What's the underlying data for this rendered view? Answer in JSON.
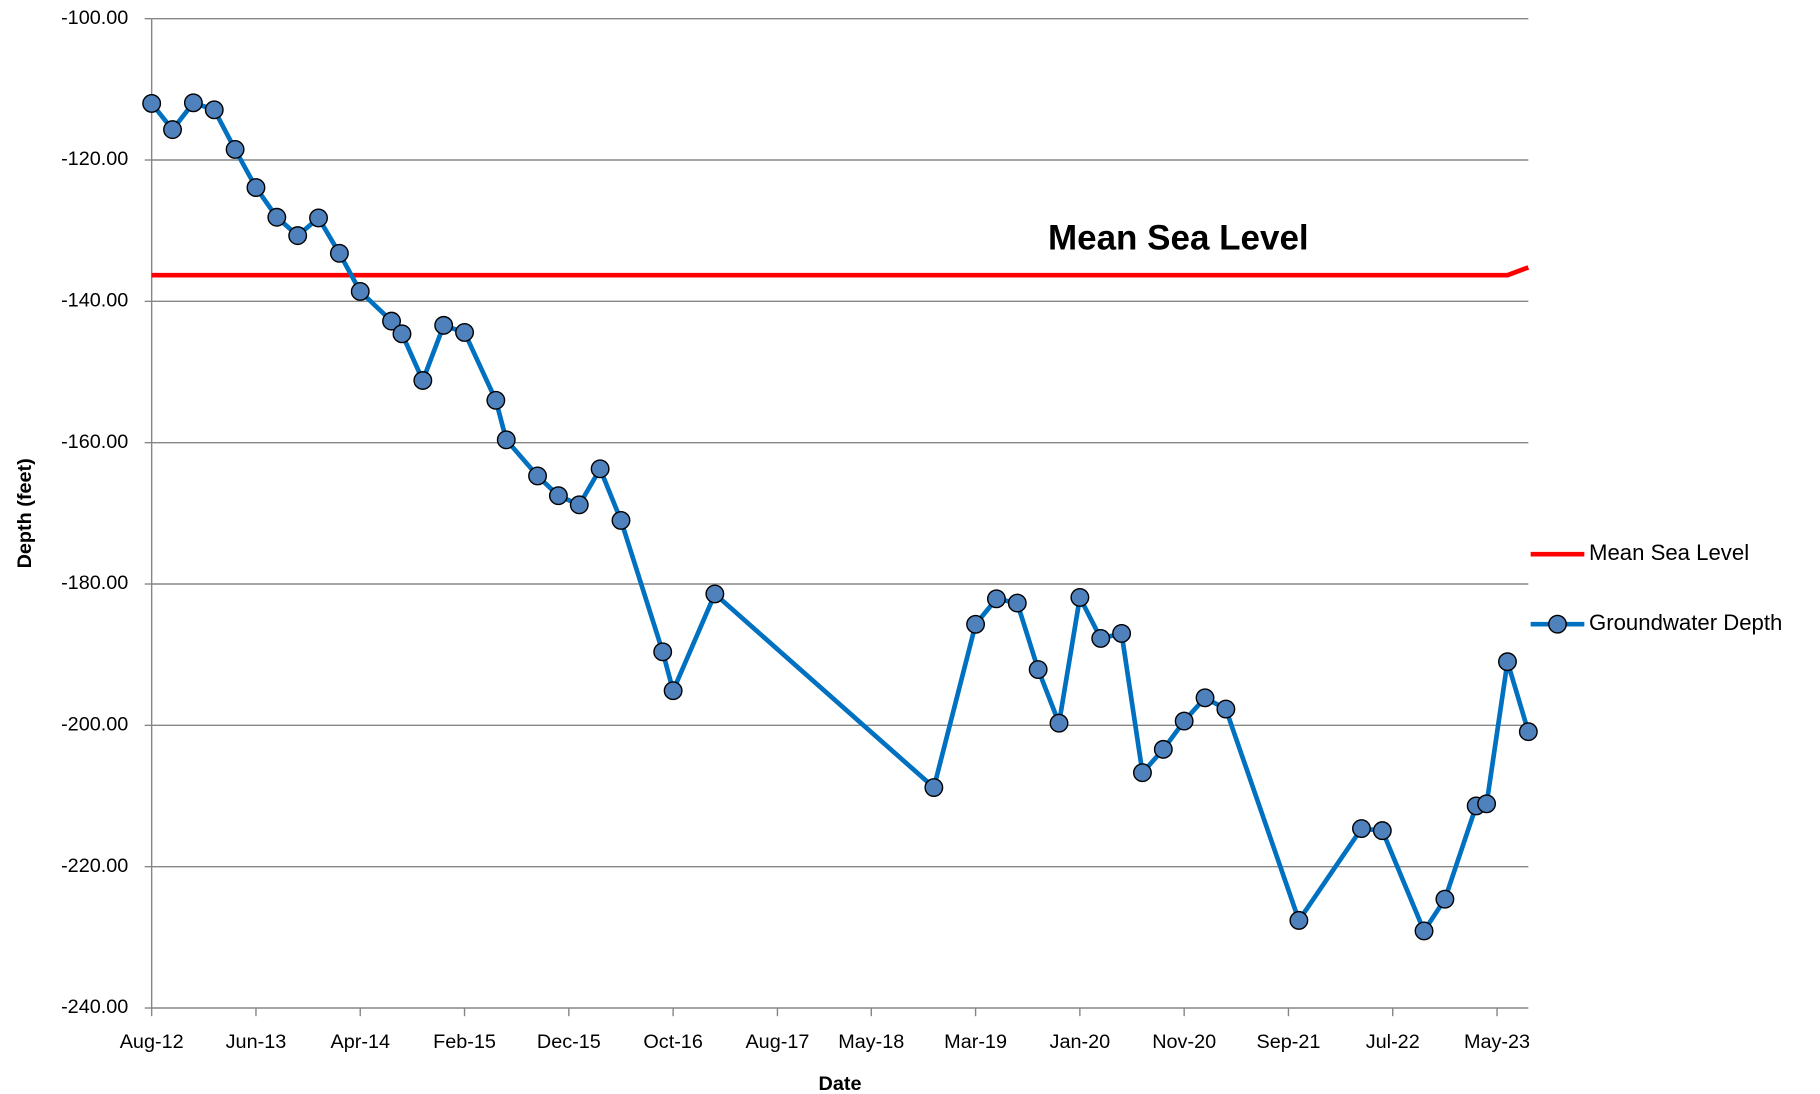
{
  "chart_data": {
    "type": "line",
    "xlabel": "Date",
    "ylabel": "Depth (feet)",
    "annotation": "Mean Sea Level",
    "xlim": [
      "2012-08",
      "2023-08"
    ],
    "xticks": [
      {
        "value": "2012-08",
        "label": "Aug-12"
      },
      {
        "value": "2013-06",
        "label": "Jun-13"
      },
      {
        "value": "2014-04",
        "label": "Apr-14"
      },
      {
        "value": "2015-02",
        "label": "Feb-15"
      },
      {
        "value": "2015-12",
        "label": "Dec-15"
      },
      {
        "value": "2016-10",
        "label": "Oct-16"
      },
      {
        "value": "2017-08",
        "label": "Aug-17"
      },
      {
        "value": "2018-05",
        "label": "May-18"
      },
      {
        "value": "2019-03",
        "label": "Mar-19"
      },
      {
        "value": "2020-01",
        "label": "Jan-20"
      },
      {
        "value": "2020-11",
        "label": "Nov-20"
      },
      {
        "value": "2021-09",
        "label": "Sep-21"
      },
      {
        "value": "2022-07",
        "label": "Jul-22"
      },
      {
        "value": "2023-05",
        "label": "May-23"
      }
    ],
    "ylim": [
      -240,
      -100
    ],
    "yticks": [
      {
        "value": -100,
        "label": "-100.00"
      },
      {
        "value": -120,
        "label": "-120.00"
      },
      {
        "value": -140,
        "label": "-140.00"
      },
      {
        "value": -160,
        "label": "-160.00"
      },
      {
        "value": -180,
        "label": "-180.00"
      },
      {
        "value": -200,
        "label": "-200.00"
      },
      {
        "value": -220,
        "label": "-220.00"
      },
      {
        "value": -240,
        "label": "-240.00"
      }
    ],
    "grid": true,
    "legend": "right",
    "series": [
      {
        "name": "Mean Sea Level",
        "color": "#ff0000",
        "marker": false,
        "x": [
          "2012-08",
          "2023-06",
          "2023-08"
        ],
        "values": [
          -136.3,
          -136.3,
          -135.2
        ]
      },
      {
        "name": "Groundwater Depth",
        "color": "#0070c0",
        "marker": true,
        "marker_color": "#4f81bd",
        "x": [
          "2012-08",
          "2012-10",
          "2012-12",
          "2013-02",
          "2013-04",
          "2013-06",
          "2013-08",
          "2013-10",
          "2013-12",
          "2014-02",
          "2014-04",
          "2014-07",
          "2014-08",
          "2014-10",
          "2014-12",
          "2015-02",
          "2015-05",
          "2015-06",
          "2015-09",
          "2015-11",
          "2016-01",
          "2016-03",
          "2016-05",
          "2016-09",
          "2016-10",
          "2017-02",
          "2018-11",
          "2019-03",
          "2019-05",
          "2019-07",
          "2019-09",
          "2019-11",
          "2020-01",
          "2020-03",
          "2020-05",
          "2020-07",
          "2020-09",
          "2020-11",
          "2021-01",
          "2021-03",
          "2021-10",
          "2022-04",
          "2022-06",
          "2022-10",
          "2022-12",
          "2023-03",
          "2023-04",
          "2023-06",
          "2023-08"
        ],
        "values": [
          -112.0,
          -115.7,
          -111.9,
          -112.9,
          -118.5,
          -123.9,
          -128.1,
          -130.7,
          -128.2,
          -133.2,
          -138.6,
          -142.8,
          -144.6,
          -151.2,
          -143.4,
          -144.4,
          -154.0,
          -159.6,
          -164.7,
          -167.5,
          -168.8,
          -163.7,
          -171.0,
          -189.6,
          -195.1,
          -181.4,
          -208.8,
          -185.7,
          -182.1,
          -182.7,
          -192.1,
          -199.7,
          -181.9,
          -187.7,
          -187.0,
          -206.7,
          -203.4,
          -199.4,
          -196.1,
          -197.7,
          -227.6,
          -214.6,
          -214.9,
          -229.1,
          -224.6,
          -211.4,
          -211.1,
          -191.0,
          -200.9
        ]
      }
    ]
  }
}
